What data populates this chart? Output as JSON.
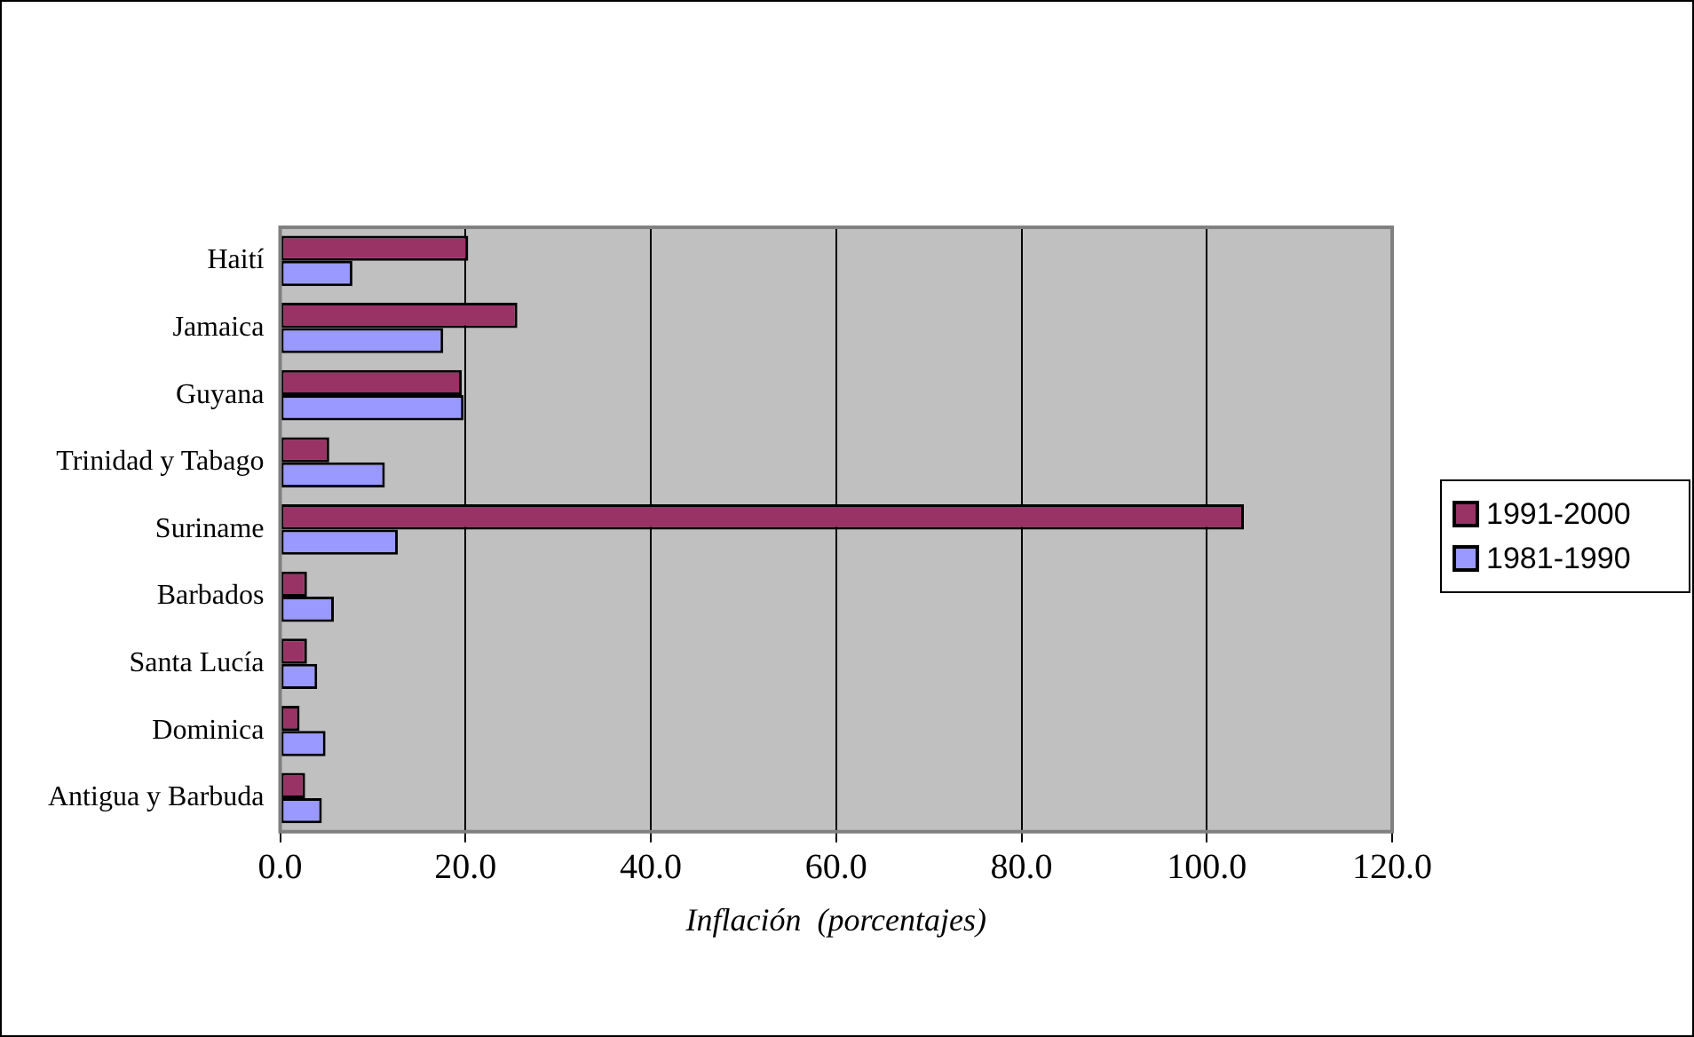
{
  "chart_data": {
    "type": "bar",
    "orientation": "horizontal",
    "xlabel": "Inflación  (porcentajes)",
    "categories": [
      "Haití",
      "Jamaica",
      "Guyana",
      "Trinidad y Tabago",
      "Suriname",
      "Barbados",
      "Santa Lucía",
      "Dominica",
      "Antigua y Barbuda"
    ],
    "series": [
      {
        "name": "1991-2000",
        "color": "#993366",
        "values": [
          20.3,
          25.6,
          19.6,
          5.3,
          104.0,
          2.9,
          2.9,
          2.1,
          2.7
        ]
      },
      {
        "name": "1981-1990",
        "color": "#9999ff",
        "values": [
          7.8,
          17.6,
          19.8,
          11.3,
          12.7,
          5.8,
          4.0,
          4.9,
          4.5
        ]
      }
    ],
    "xlim": [
      0,
      120
    ],
    "xticks": [
      {
        "value": 0,
        "label": "0.0"
      },
      {
        "value": 20,
        "label": "20.0"
      },
      {
        "value": 40,
        "label": "40.0"
      },
      {
        "value": 60,
        "label": "60.0"
      },
      {
        "value": 80,
        "label": "80.0"
      },
      {
        "value": 100,
        "label": "100.0"
      },
      {
        "value": 120,
        "label": "120.0"
      }
    ],
    "grid": "x",
    "legend": "right"
  }
}
